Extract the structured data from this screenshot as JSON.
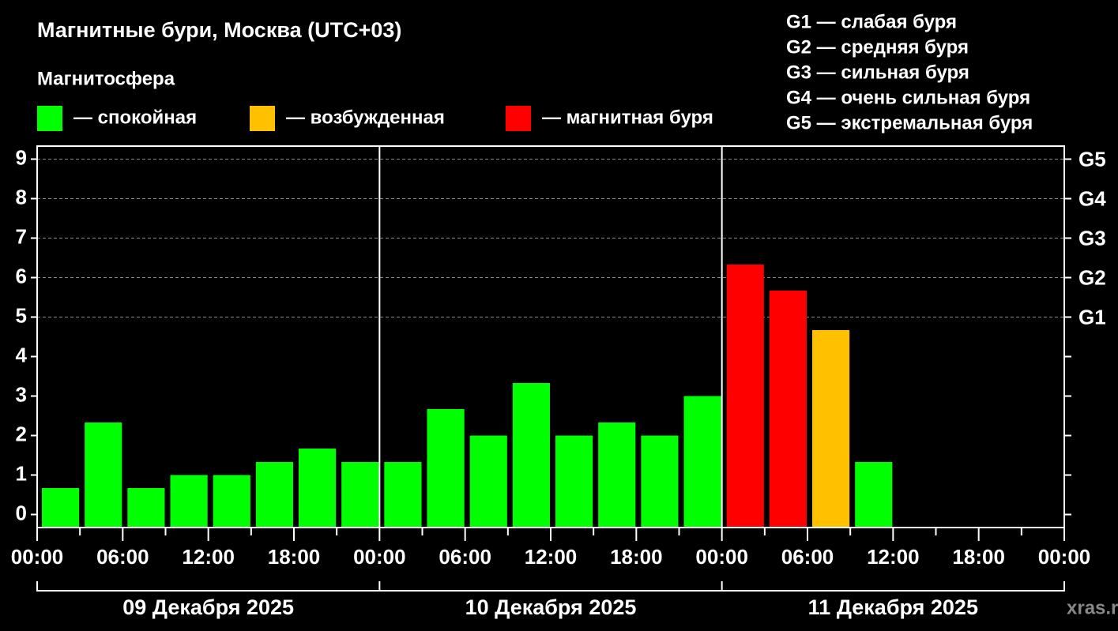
{
  "chart_data": {
    "type": "bar",
    "title": "Магнитные бури, Москва (UTC+03)",
    "subtitle": "Магнитосфера",
    "legend": [
      {
        "color": "#00ff00",
        "label": "— спокойная"
      },
      {
        "color": "#ffc000",
        "label": "— возбужденная"
      },
      {
        "color": "#ff0000",
        "label": "— магнитная буря"
      }
    ],
    "scale_notes": [
      "G1 — слабая буря",
      "G2 — средняя буря",
      "G3 — сильная буря",
      "G4 — очень сильная буря",
      "G5 — экстремальная буря"
    ],
    "x": [
      0,
      3,
      6,
      9,
      12,
      15,
      18,
      21,
      24,
      27,
      30,
      33,
      36,
      39,
      42,
      45,
      48,
      51,
      54,
      57
    ],
    "values": [
      0.67,
      2.33,
      0.67,
      1,
      1,
      1.33,
      1.67,
      1.33,
      1.33,
      2.67,
      2,
      3.33,
      2,
      2.33,
      2,
      3,
      6.33,
      5.67,
      4.67,
      1.33
    ],
    "colors": [
      "#00ff00",
      "#00ff00",
      "#00ff00",
      "#00ff00",
      "#00ff00",
      "#00ff00",
      "#00ff00",
      "#00ff00",
      "#00ff00",
      "#00ff00",
      "#00ff00",
      "#00ff00",
      "#00ff00",
      "#00ff00",
      "#00ff00",
      "#00ff00",
      "#ff0000",
      "#ff0000",
      "#ffc000",
      "#00ff00"
    ],
    "xlim": [
      0,
      72
    ],
    "xticks": [
      {
        "value": 0,
        "label": "00:00"
      },
      {
        "value": 6,
        "label": "06:00"
      },
      {
        "value": 12,
        "label": "12:00"
      },
      {
        "value": 18,
        "label": "18:00"
      },
      {
        "value": 24,
        "label": "00:00"
      },
      {
        "value": 30,
        "label": "06:00"
      },
      {
        "value": 36,
        "label": "12:00"
      },
      {
        "value": 42,
        "label": "18:00"
      },
      {
        "value": 48,
        "label": "00:00"
      },
      {
        "value": 54,
        "label": "06:00"
      },
      {
        "value": 60,
        "label": "12:00"
      },
      {
        "value": 66,
        "label": "18:00"
      },
      {
        "value": 72,
        "label": "00:00"
      }
    ],
    "xminor_ticks": [
      3,
      9,
      15,
      21,
      27,
      33,
      39,
      45,
      51,
      57,
      63,
      69
    ],
    "ylim": [
      -0.33,
      9.33
    ],
    "yticks": [
      0,
      1,
      2,
      3,
      4,
      5,
      6,
      7,
      8,
      9
    ],
    "right_ticks": [
      {
        "value": 5,
        "label": "G1"
      },
      {
        "value": 6,
        "label": "G2"
      },
      {
        "value": 7,
        "label": "G3"
      },
      {
        "value": 8,
        "label": "G4"
      },
      {
        "value": 9,
        "label": "G5"
      }
    ],
    "grid": true,
    "days": [
      {
        "label": "09 Декабря 2025",
        "start": 0,
        "end": 24
      },
      {
        "label": "10 Декабря 2025",
        "start": 24,
        "end": 48
      },
      {
        "label": "11 Декабря 2025",
        "start": 48,
        "end": 72
      }
    ],
    "watermark": "xras.ru"
  }
}
